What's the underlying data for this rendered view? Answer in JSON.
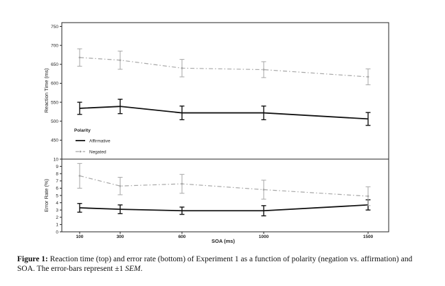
{
  "chart_data": [
    {
      "type": "line",
      "panel": "top",
      "ylabel": "Reaction Time (ms)",
      "ylim": [
        400,
        760
      ],
      "yticks": [
        450,
        500,
        550,
        600,
        650,
        700,
        750
      ],
      "x": [
        100,
        300,
        600,
        1000,
        1500
      ],
      "series": [
        {
          "name": "Affirmative",
          "color": "#111111",
          "style": "solid",
          "values": [
            534,
            539,
            522,
            522,
            506
          ],
          "error": [
            16,
            19,
            18,
            18,
            17
          ]
        },
        {
          "name": "Negated",
          "color": "#a6a6a6",
          "style": "dashdot",
          "values": [
            668,
            661,
            640,
            636,
            617
          ],
          "error": [
            23,
            24,
            23,
            21,
            21
          ]
        }
      ],
      "legend": {
        "title": "Polarity",
        "placement": "bottom-left"
      },
      "grid": false
    },
    {
      "type": "line",
      "panel": "bottom",
      "xlabel": "SOA (ms)",
      "ylabel": "Error Rate (%)",
      "ylim": [
        0,
        10
      ],
      "yticks": [
        0,
        1,
        2,
        3,
        4,
        5,
        6,
        7,
        8,
        9,
        10
      ],
      "x": [
        100,
        300,
        600,
        1000,
        1500
      ],
      "xticks": [
        "100",
        "300",
        "600",
        "1000",
        "1500"
      ],
      "series": [
        {
          "name": "Affirmative",
          "color": "#111111",
          "style": "solid",
          "values": [
            3.3,
            3.1,
            2.9,
            2.9,
            3.7
          ],
          "error": [
            0.6,
            0.6,
            0.5,
            0.7,
            0.7
          ]
        },
        {
          "name": "Negated",
          "color": "#a6a6a6",
          "style": "dashdot",
          "values": [
            7.7,
            6.3,
            6.6,
            5.8,
            4.9
          ],
          "error": [
            1.7,
            1.2,
            1.3,
            1.3,
            1.3
          ]
        }
      ],
      "grid": false
    }
  ],
  "caption": {
    "label": "Figure 1:",
    "text": " Reaction time (top) and error rate (bottom) of Experiment 1 as a function of polarity (negation vs. affirmation) and SOA. The error-bars represent ±1 ",
    "emph": "SEM",
    "end": "."
  }
}
